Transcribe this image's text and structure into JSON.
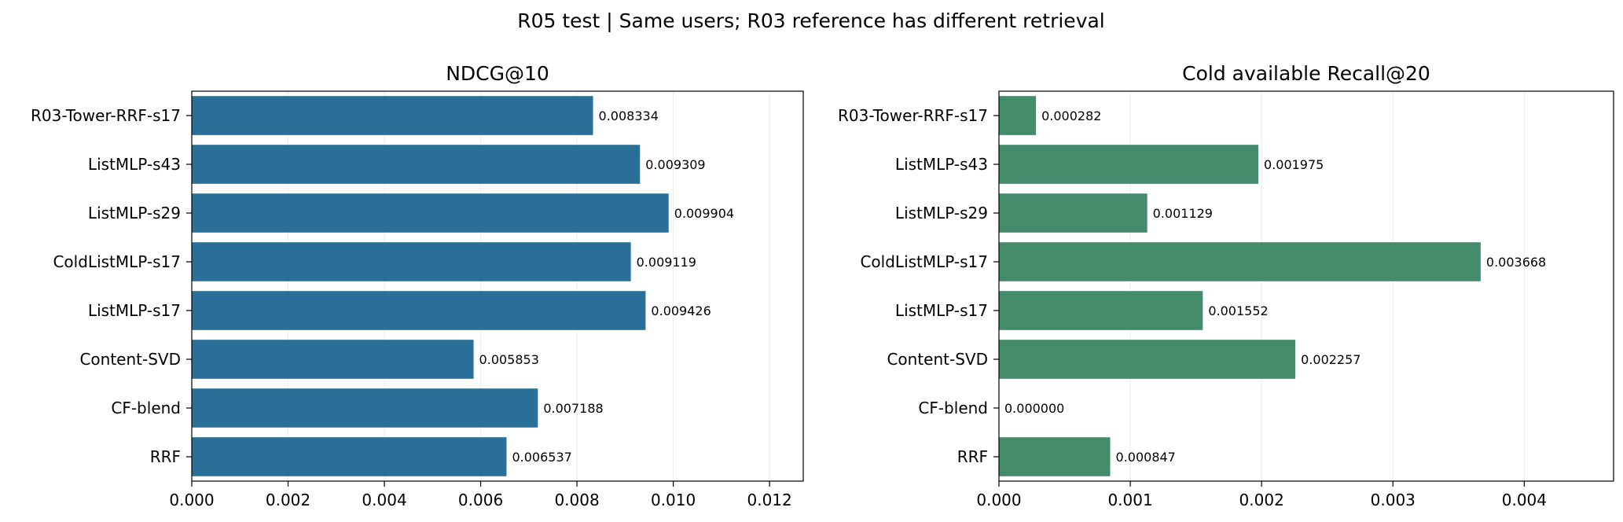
{
  "figure": {
    "title": "R05 test | Same users; R03 reference has different retrieval"
  },
  "chart_data": [
    {
      "type": "bar",
      "orientation": "horizontal",
      "title": "NDCG@10",
      "categories": [
        "R03-Tower-RRF-s17",
        "ListMLP-s43",
        "ListMLP-s29",
        "ColdListMLP-s17",
        "ListMLP-s17",
        "Content-SVD",
        "CF-blend",
        "RRF"
      ],
      "values": [
        0.008334,
        0.009309,
        0.009904,
        0.009119,
        0.009426,
        0.005853,
        0.007188,
        0.006537
      ],
      "value_labels": [
        "0.008334",
        "0.009309",
        "0.009904",
        "0.009119",
        "0.009426",
        "0.005853",
        "0.007188",
        "0.006537"
      ],
      "xlim": [
        0,
        0.0127
      ],
      "xticks": [
        0,
        0.002,
        0.004,
        0.006,
        0.008,
        0.01,
        0.012
      ],
      "xtick_labels": [
        "0.000",
        "0.002",
        "0.004",
        "0.006",
        "0.008",
        "0.010",
        "0.012"
      ],
      "grid": "x",
      "color": "#2a6f97",
      "xlabel": "",
      "ylabel": ""
    },
    {
      "type": "bar",
      "orientation": "horizontal",
      "title": "Cold available Recall@20",
      "categories": [
        "R03-Tower-RRF-s17",
        "ListMLP-s43",
        "ListMLP-s29",
        "ColdListMLP-s17",
        "ListMLP-s17",
        "Content-SVD",
        "CF-blend",
        "RRF"
      ],
      "values": [
        0.000282,
        0.001975,
        0.001129,
        0.003668,
        0.001552,
        0.002257,
        0.0,
        0.000847
      ],
      "value_labels": [
        "0.000282",
        "0.001975",
        "0.001129",
        "0.003668",
        "0.001552",
        "0.002257",
        "0.000000",
        "0.000847"
      ],
      "xlim": [
        0,
        0.00468
      ],
      "xticks": [
        0,
        0.001,
        0.002,
        0.003,
        0.004
      ],
      "xtick_labels": [
        "0.000",
        "0.001",
        "0.002",
        "0.003",
        "0.004"
      ],
      "grid": "x",
      "color": "#438b6a",
      "xlabel": "",
      "ylabel": ""
    }
  ]
}
